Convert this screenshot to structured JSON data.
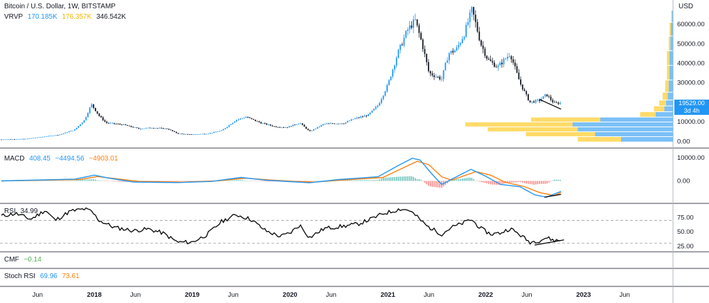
{
  "header": {
    "title": "Bitcoin / U.S. Dollar, 1W, BITSTAMP",
    "vrvp_label": "VRVP",
    "vrvp_up": "170.185K",
    "vrvp_down": "176.357K",
    "vrvp_total": "346.542K"
  },
  "price_badge": {
    "value": "19529.00",
    "countdown": "3d 4h"
  },
  "colors": {
    "up": "#2196f3",
    "down": "#131722",
    "vp_up": "#64b5f6",
    "vp_down": "#ffd54f",
    "macd": "#2196f3",
    "signal": "#ff7f0e",
    "hist_pos": "#26a69a",
    "hist_neg": "#ef5350",
    "rsi": "#000000",
    "cmf": "#4caf50",
    "stoch_k": "#2196f3",
    "stoch_d": "#ff7f0e"
  },
  "panes": {
    "macd": {
      "label": "MACD",
      "v1": "408.45",
      "v2": "−4494.56",
      "v3": "−4903.01"
    },
    "rsi": {
      "label": "RSI",
      "v1": "34.99"
    },
    "cmf": {
      "label": "CMF",
      "v1": "−0.14"
    },
    "stoch": {
      "label": "Stoch RSI",
      "v1": "69.96",
      "v2": "73.61"
    }
  },
  "chart_data": {
    "type": "candlestick",
    "title": "Bitcoin / U.S. Dollar, 1W, BITSTAMP",
    "currency_label": "USD",
    "price_axis": {
      "ticks": [
        "60000.00",
        "50000.00",
        "40000.00",
        "30000.00",
        "20000.00",
        "10000.00",
        "0.00"
      ],
      "tick_values": [
        60000,
        50000,
        40000,
        30000,
        20000,
        10000,
        0
      ],
      "ylim": [
        -2000,
        71000
      ]
    },
    "macd_axis": {
      "ticks": [
        "10000.00",
        "0.00"
      ],
      "tick_values": [
        10000,
        0
      ],
      "ylim": [
        -8500,
        13000
      ]
    },
    "rsi_axis": {
      "ticks": [
        "75.00",
        "50.00",
        "25.00"
      ],
      "tick_values": [
        75,
        50,
        25
      ],
      "ylim": [
        20,
        95
      ]
    },
    "time_axis": {
      "labels": [
        "Jun",
        "2018",
        "Jun",
        "2019",
        "Jun",
        "2020",
        "Jun",
        "2021",
        "Jun",
        "2022",
        "Jun",
        "2023",
        "Jun"
      ],
      "values": [
        2017.42,
        2018.0,
        2018.42,
        2019.0,
        2019.42,
        2020.0,
        2020.42,
        2021.0,
        2021.42,
        2022.0,
        2022.42,
        2023.0,
        2023.42
      ],
      "bold": [
        false,
        true,
        false,
        true,
        false,
        true,
        false,
        true,
        false,
        true,
        false,
        true,
        false
      ],
      "xlim": [
        2017.05,
        2023.9
      ]
    },
    "price_path": [
      [
        2017.05,
        1000
      ],
      [
        2017.3,
        1300
      ],
      [
        2017.5,
        2500
      ],
      [
        2017.65,
        3500
      ],
      [
        2017.8,
        6000
      ],
      [
        2017.9,
        11000
      ],
      [
        2017.97,
        19000
      ],
      [
        2018.05,
        13000
      ],
      [
        2018.12,
        9500
      ],
      [
        2018.3,
        8500
      ],
      [
        2018.45,
        6500
      ],
      [
        2018.6,
        7000
      ],
      [
        2018.75,
        6400
      ],
      [
        2018.85,
        4000
      ],
      [
        2018.97,
        3500
      ],
      [
        2019.15,
        3900
      ],
      [
        2019.3,
        5500
      ],
      [
        2019.45,
        11000
      ],
      [
        2019.55,
        12500
      ],
      [
        2019.7,
        9500
      ],
      [
        2019.85,
        7500
      ],
      [
        2019.97,
        7200
      ],
      [
        2020.1,
        9500
      ],
      [
        2020.2,
        5000
      ],
      [
        2020.35,
        9000
      ],
      [
        2020.55,
        9300
      ],
      [
        2020.65,
        11500
      ],
      [
        2020.8,
        13500
      ],
      [
        2020.9,
        18500
      ],
      [
        2021.0,
        29000
      ],
      [
        2021.1,
        45000
      ],
      [
        2021.2,
        57000
      ],
      [
        2021.28,
        62000
      ],
      [
        2021.35,
        50000
      ],
      [
        2021.42,
        35000
      ],
      [
        2021.55,
        32000
      ],
      [
        2021.62,
        45000
      ],
      [
        2021.7,
        47000
      ],
      [
        2021.78,
        55000
      ],
      [
        2021.86,
        67500
      ],
      [
        2021.95,
        50000
      ],
      [
        2022.02,
        42000
      ],
      [
        2022.12,
        38000
      ],
      [
        2022.25,
        45000
      ],
      [
        2022.35,
        30000
      ],
      [
        2022.45,
        20000
      ],
      [
        2022.55,
        21000
      ],
      [
        2022.62,
        24000
      ],
      [
        2022.7,
        19500
      ],
      [
        2022.77,
        19600
      ]
    ],
    "volume_profile": [
      {
        "price": 1000,
        "up": 0.3,
        "down": 0.25
      },
      {
        "price": 3500,
        "up": 0.45,
        "down": 0.4
      },
      {
        "price": 6000,
        "up": 0.55,
        "down": 0.52
      },
      {
        "price": 8500,
        "up": 0.58,
        "down": 0.62
      },
      {
        "price": 11000,
        "up": 0.42,
        "down": 0.4
      },
      {
        "price": 13500,
        "up": 0.1,
        "down": 0.09
      },
      {
        "price": 16500,
        "up": 0.05,
        "down": 0.06
      },
      {
        "price": 19500,
        "up": 0.04,
        "down": 0.04
      },
      {
        "price": 22500,
        "up": 0.03,
        "down": 0.03
      },
      {
        "price": 27500,
        "up": 0.025,
        "down": 0.02
      },
      {
        "price": 35000,
        "up": 0.02,
        "down": 0.015
      },
      {
        "price": 42500,
        "up": 0.02,
        "down": 0.015
      },
      {
        "price": 50000,
        "up": 0.015,
        "down": 0.01
      },
      {
        "price": 57500,
        "up": 0.012,
        "down": 0.008
      },
      {
        "price": 64000,
        "up": 0.006,
        "down": 0.004
      }
    ],
    "macd_path": [
      [
        2017.05,
        20
      ],
      [
        2017.8,
        800
      ],
      [
        2018.0,
        2500
      ],
      [
        2018.15,
        1200
      ],
      [
        2018.4,
        -500
      ],
      [
        2018.85,
        -700
      ],
      [
        2019.2,
        -200
      ],
      [
        2019.5,
        1500
      ],
      [
        2019.75,
        300
      ],
      [
        2020.0,
        -300
      ],
      [
        2020.2,
        -800
      ],
      [
        2020.5,
        600
      ],
      [
        2020.9,
        1800
      ],
      [
        2021.1,
        6500
      ],
      [
        2021.25,
        9800
      ],
      [
        2021.33,
        9000
      ],
      [
        2021.45,
        3000
      ],
      [
        2021.55,
        -1500
      ],
      [
        2021.65,
        700
      ],
      [
        2021.85,
        5000
      ],
      [
        2022.0,
        2000
      ],
      [
        2022.15,
        -1500
      ],
      [
        2022.35,
        -2500
      ],
      [
        2022.5,
        -6000
      ],
      [
        2022.62,
        -7000
      ],
      [
        2022.77,
        -4500
      ]
    ],
    "signal_path": [
      [
        2017.05,
        10
      ],
      [
        2017.85,
        600
      ],
      [
        2018.03,
        1900
      ],
      [
        2018.2,
        1100
      ],
      [
        2018.45,
        -200
      ],
      [
        2018.9,
        -500
      ],
      [
        2019.25,
        0
      ],
      [
        2019.55,
        1200
      ],
      [
        2019.8,
        400
      ],
      [
        2020.05,
        -200
      ],
      [
        2020.25,
        -500
      ],
      [
        2020.55,
        400
      ],
      [
        2020.95,
        1500
      ],
      [
        2021.15,
        5500
      ],
      [
        2021.3,
        8500
      ],
      [
        2021.42,
        7000
      ],
      [
        2021.55,
        1800
      ],
      [
        2021.65,
        300
      ],
      [
        2021.9,
        4000
      ],
      [
        2022.05,
        2500
      ],
      [
        2022.2,
        -600
      ],
      [
        2022.4,
        -2500
      ],
      [
        2022.55,
        -5000
      ],
      [
        2022.7,
        -6300
      ],
      [
        2022.77,
        -5000
      ]
    ],
    "rsi_path": [
      [
        2017.05,
        78
      ],
      [
        2017.2,
        82
      ],
      [
        2017.35,
        72
      ],
      [
        2017.5,
        88
      ],
      [
        2017.6,
        70
      ],
      [
        2017.75,
        86
      ],
      [
        2017.9,
        90
      ],
      [
        2017.97,
        86
      ],
      [
        2018.05,
        70
      ],
      [
        2018.2,
        58
      ],
      [
        2018.4,
        52
      ],
      [
        2018.55,
        55
      ],
      [
        2018.7,
        48
      ],
      [
        2018.85,
        32
      ],
      [
        2019.0,
        32
      ],
      [
        2019.15,
        45
      ],
      [
        2019.3,
        68
      ],
      [
        2019.45,
        80
      ],
      [
        2019.6,
        72
      ],
      [
        2019.75,
        52
      ],
      [
        2019.9,
        42
      ],
      [
        2020.0,
        48
      ],
      [
        2020.1,
        62
      ],
      [
        2020.2,
        40
      ],
      [
        2020.35,
        56
      ],
      [
        2020.55,
        60
      ],
      [
        2020.7,
        64
      ],
      [
        2020.85,
        74
      ],
      [
        2020.95,
        82
      ],
      [
        2021.05,
        86
      ],
      [
        2021.12,
        90
      ],
      [
        2021.22,
        88
      ],
      [
        2021.3,
        76
      ],
      [
        2021.4,
        60
      ],
      [
        2021.55,
        46
      ],
      [
        2021.65,
        58
      ],
      [
        2021.75,
        64
      ],
      [
        2021.85,
        72
      ],
      [
        2021.95,
        56
      ],
      [
        2022.05,
        46
      ],
      [
        2022.15,
        48
      ],
      [
        2022.25,
        56
      ],
      [
        2022.35,
        45
      ],
      [
        2022.45,
        32
      ],
      [
        2022.55,
        35
      ],
      [
        2022.62,
        40
      ],
      [
        2022.7,
        35
      ],
      [
        2022.77,
        35
      ]
    ],
    "rsi_bands": [
      70,
      30
    ],
    "trendlines": [
      {
        "pane": "price",
        "from": [
          2022.55,
          21500
        ],
        "to": [
          2022.77,
          16500
        ]
      },
      {
        "pane": "macd",
        "from": [
          2022.6,
          -7000
        ],
        "to": [
          2022.77,
          -5800
        ]
      },
      {
        "pane": "rsi",
        "from": [
          2022.5,
          27
        ],
        "to": [
          2022.8,
          36
        ]
      }
    ]
  }
}
